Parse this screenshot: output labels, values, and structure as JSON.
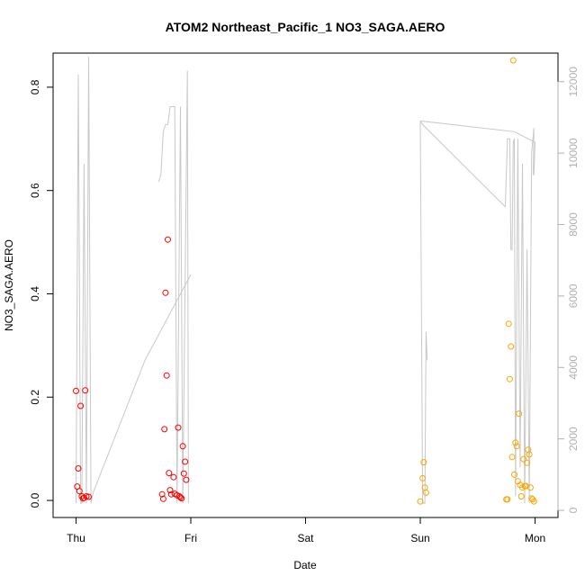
{
  "chart_data": {
    "type": "scatter",
    "title": "ATOM2 Northeast_Pacific_1 NO3_SAGA.AERO",
    "xlabel": "Date",
    "ylabel": "NO3_SAGA.AERO",
    "x_ticks": [
      {
        "label": "Thu",
        "value": 0
      },
      {
        "label": "Fri",
        "value": 1
      },
      {
        "label": "Sat",
        "value": 2
      },
      {
        "label": "Sun",
        "value": 3
      },
      {
        "label": "Mon",
        "value": 4
      }
    ],
    "xlim": [
      -0.2,
      4.2
    ],
    "ylim": [
      -0.033,
      0.866
    ],
    "y_ticks": [
      0.0,
      0.2,
      0.4,
      0.6,
      0.8
    ],
    "y_tick_labels": [
      "0.0",
      "0.2",
      "0.4",
      "0.6",
      "0.8"
    ],
    "y2_ticks": [
      0,
      2000,
      4000,
      6000,
      8000,
      10000,
      12000
    ],
    "y2_tick_labels": [
      "0",
      "2000",
      "4000",
      "6000",
      "8000",
      "10000",
      "12000"
    ],
    "y2lim": [
      -200,
      12800
    ],
    "colors": {
      "series_red": "#ff0000",
      "series_orange": "#ffa500",
      "altitude_line": "#c8c8c8",
      "right_axis": "#b0b0b0"
    },
    "series": [
      {
        "color": "#ff0000",
        "points": [
          [
            0.0,
            0.212
          ],
          [
            0.01,
            0.027
          ],
          [
            0.02,
            0.062
          ],
          [
            0.03,
            0.018
          ],
          [
            0.04,
            0.183
          ],
          [
            0.05,
            0.008
          ],
          [
            0.06,
            0.004
          ],
          [
            0.07,
            0.005
          ],
          [
            0.08,
            0.213
          ],
          [
            0.09,
            0.008
          ],
          [
            0.11,
            0.007
          ],
          [
            0.75,
            0.012
          ],
          [
            0.76,
            0.003
          ],
          [
            0.77,
            0.138
          ],
          [
            0.78,
            0.402
          ],
          [
            0.79,
            0.242
          ],
          [
            0.8,
            0.505
          ],
          [
            0.81,
            0.053
          ],
          [
            0.82,
            0.02
          ],
          [
            0.83,
            0.012
          ],
          [
            0.85,
            0.045
          ],
          [
            0.86,
            0.013
          ],
          [
            0.88,
            0.01
          ],
          [
            0.89,
            0.141
          ],
          [
            0.9,
            0.008
          ],
          [
            0.91,
            0.006
          ],
          [
            0.92,
            0.004
          ],
          [
            0.93,
            0.105
          ],
          [
            0.94,
            0.052
          ],
          [
            0.95,
            0.075
          ],
          [
            0.96,
            0.04
          ]
        ]
      },
      {
        "color": "#ffa500",
        "points": [
          [
            3.0,
            -0.002
          ],
          [
            3.02,
            0.043
          ],
          [
            3.03,
            0.074
          ],
          [
            3.04,
            0.025
          ],
          [
            3.05,
            0.015
          ],
          [
            3.75,
            0.002
          ],
          [
            3.76,
            0.002
          ],
          [
            3.77,
            0.342
          ],
          [
            3.78,
            0.235
          ],
          [
            3.79,
            0.298
          ],
          [
            3.8,
            0.084
          ],
          [
            3.81,
            0.852
          ],
          [
            3.82,
            0.05
          ],
          [
            3.83,
            0.112
          ],
          [
            3.84,
            0.105
          ],
          [
            3.85,
            0.037
          ],
          [
            3.86,
            0.168
          ],
          [
            3.87,
            0.03
          ],
          [
            3.88,
            0.008
          ],
          [
            3.89,
            0.025
          ],
          [
            3.9,
            0.08
          ],
          [
            3.91,
            0.028
          ],
          [
            3.92,
            0.028
          ],
          [
            3.93,
            0.073
          ],
          [
            3.94,
            0.098
          ],
          [
            3.95,
            0.089
          ],
          [
            3.96,
            0.025
          ],
          [
            3.97,
            0.004
          ],
          [
            3.98,
            0.002
          ],
          [
            3.99,
            -0.002
          ]
        ]
      }
    ],
    "altitude_line": {
      "axis": "right",
      "points": [
        [
          0.0,
          200
        ],
        [
          0.02,
          12200
        ],
        [
          0.04,
          200
        ],
        [
          0.05,
          200
        ],
        [
          0.07,
          9700
        ],
        [
          0.09,
          200
        ],
        [
          0.11,
          12700
        ],
        [
          0.13,
          200
        ],
        [
          0.15,
          500
        ],
        [
          0.6,
          4200
        ],
        [
          1.0,
          6600
        ],
        [
          0.72,
          9200
        ],
        [
          0.74,
          9400
        ],
        [
          0.76,
          10600
        ],
        [
          0.78,
          10800
        ],
        [
          0.8,
          10800
        ],
        [
          0.82,
          11300
        ],
        [
          0.84,
          11300
        ],
        [
          0.86,
          11300
        ],
        [
          0.88,
          200
        ],
        [
          0.91,
          11300
        ],
        [
          0.93,
          200
        ],
        [
          0.97,
          12300
        ],
        [
          0.98,
          200
        ]
      ],
      "break_index": 11,
      "points2": [
        [
          3.0,
          10900
        ],
        [
          3.02,
          200
        ],
        [
          3.04,
          200
        ],
        [
          3.05,
          5000
        ],
        [
          3.06,
          4200
        ]
      ],
      "points3": [
        [
          3.0,
          10900
        ],
        [
          3.02,
          10800
        ],
        [
          3.74,
          8500
        ],
        [
          3.76,
          10400
        ],
        [
          3.78,
          10400
        ],
        [
          3.79,
          7300
        ],
        [
          3.8,
          7300
        ],
        [
          3.81,
          10300
        ],
        [
          3.82,
          10400
        ],
        [
          3.83,
          400
        ],
        [
          3.85,
          10400
        ],
        [
          3.87,
          1200
        ],
        [
          3.89,
          9700
        ],
        [
          3.91,
          200
        ],
        [
          3.93,
          7300
        ],
        [
          3.95,
          200
        ],
        [
          3.97,
          10000
        ],
        [
          3.99,
          10700
        ],
        [
          3.985,
          9400
        ],
        [
          3.99,
          9400
        ],
        [
          4.0,
          10300
        ],
        [
          3.82,
          10600
        ],
        [
          3.0,
          10900
        ]
      ]
    }
  }
}
